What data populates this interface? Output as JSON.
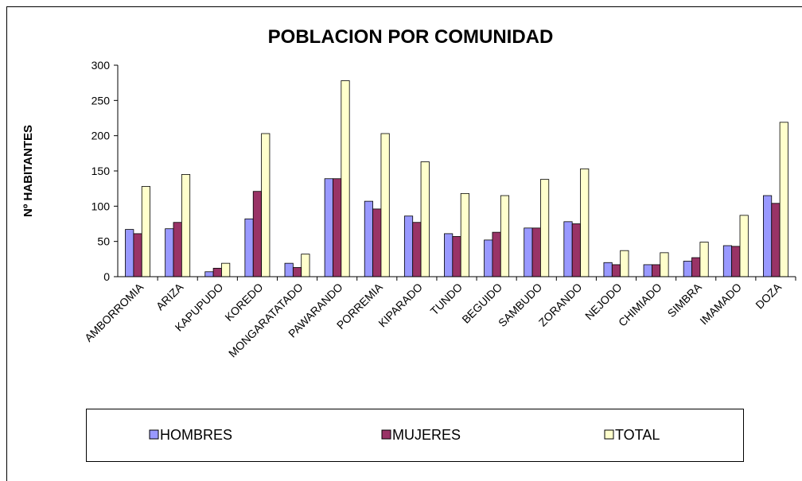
{
  "chart_data": {
    "type": "bar",
    "title": "POBLACION POR COMUNIDAD",
    "y_label": "Nº HABITANTES",
    "categories": [
      "AMBORROMIA",
      "ARIZA",
      "KAPUPUDO",
      "KOREDO",
      "MONGARATATADO",
      "PAWARANDO",
      "PORREMIA",
      "KIPARADO",
      "TUNDO",
      "BEGUIDO",
      "SAMBUDO",
      "ZORANDO",
      "NEJODO",
      "CHIMIADO",
      "SIMBRA",
      "IMAMADO",
      "DOZA"
    ],
    "series": [
      {
        "name": "HOMBRES",
        "color": "#9999ff",
        "values": [
          67,
          68,
          7,
          82,
          19,
          139,
          107,
          86,
          61,
          52,
          69,
          78,
          20,
          17,
          22,
          44,
          115
        ]
      },
      {
        "name": "MUJERES",
        "color": "#993366",
        "values": [
          61,
          77,
          12,
          121,
          13,
          139,
          96,
          77,
          57,
          63,
          69,
          75,
          17,
          17,
          27,
          43,
          104
        ]
      },
      {
        "name": "TOTAL",
        "color": "#ffffcc",
        "values": [
          128,
          145,
          19,
          203,
          32,
          278,
          203,
          163,
          118,
          115,
          138,
          153,
          37,
          34,
          49,
          87,
          219
        ]
      }
    ],
    "ylim": [
      0,
      300
    ],
    "yticks": [
      0,
      50,
      100,
      150,
      200,
      250,
      300
    ],
    "legend": "bottom"
  }
}
